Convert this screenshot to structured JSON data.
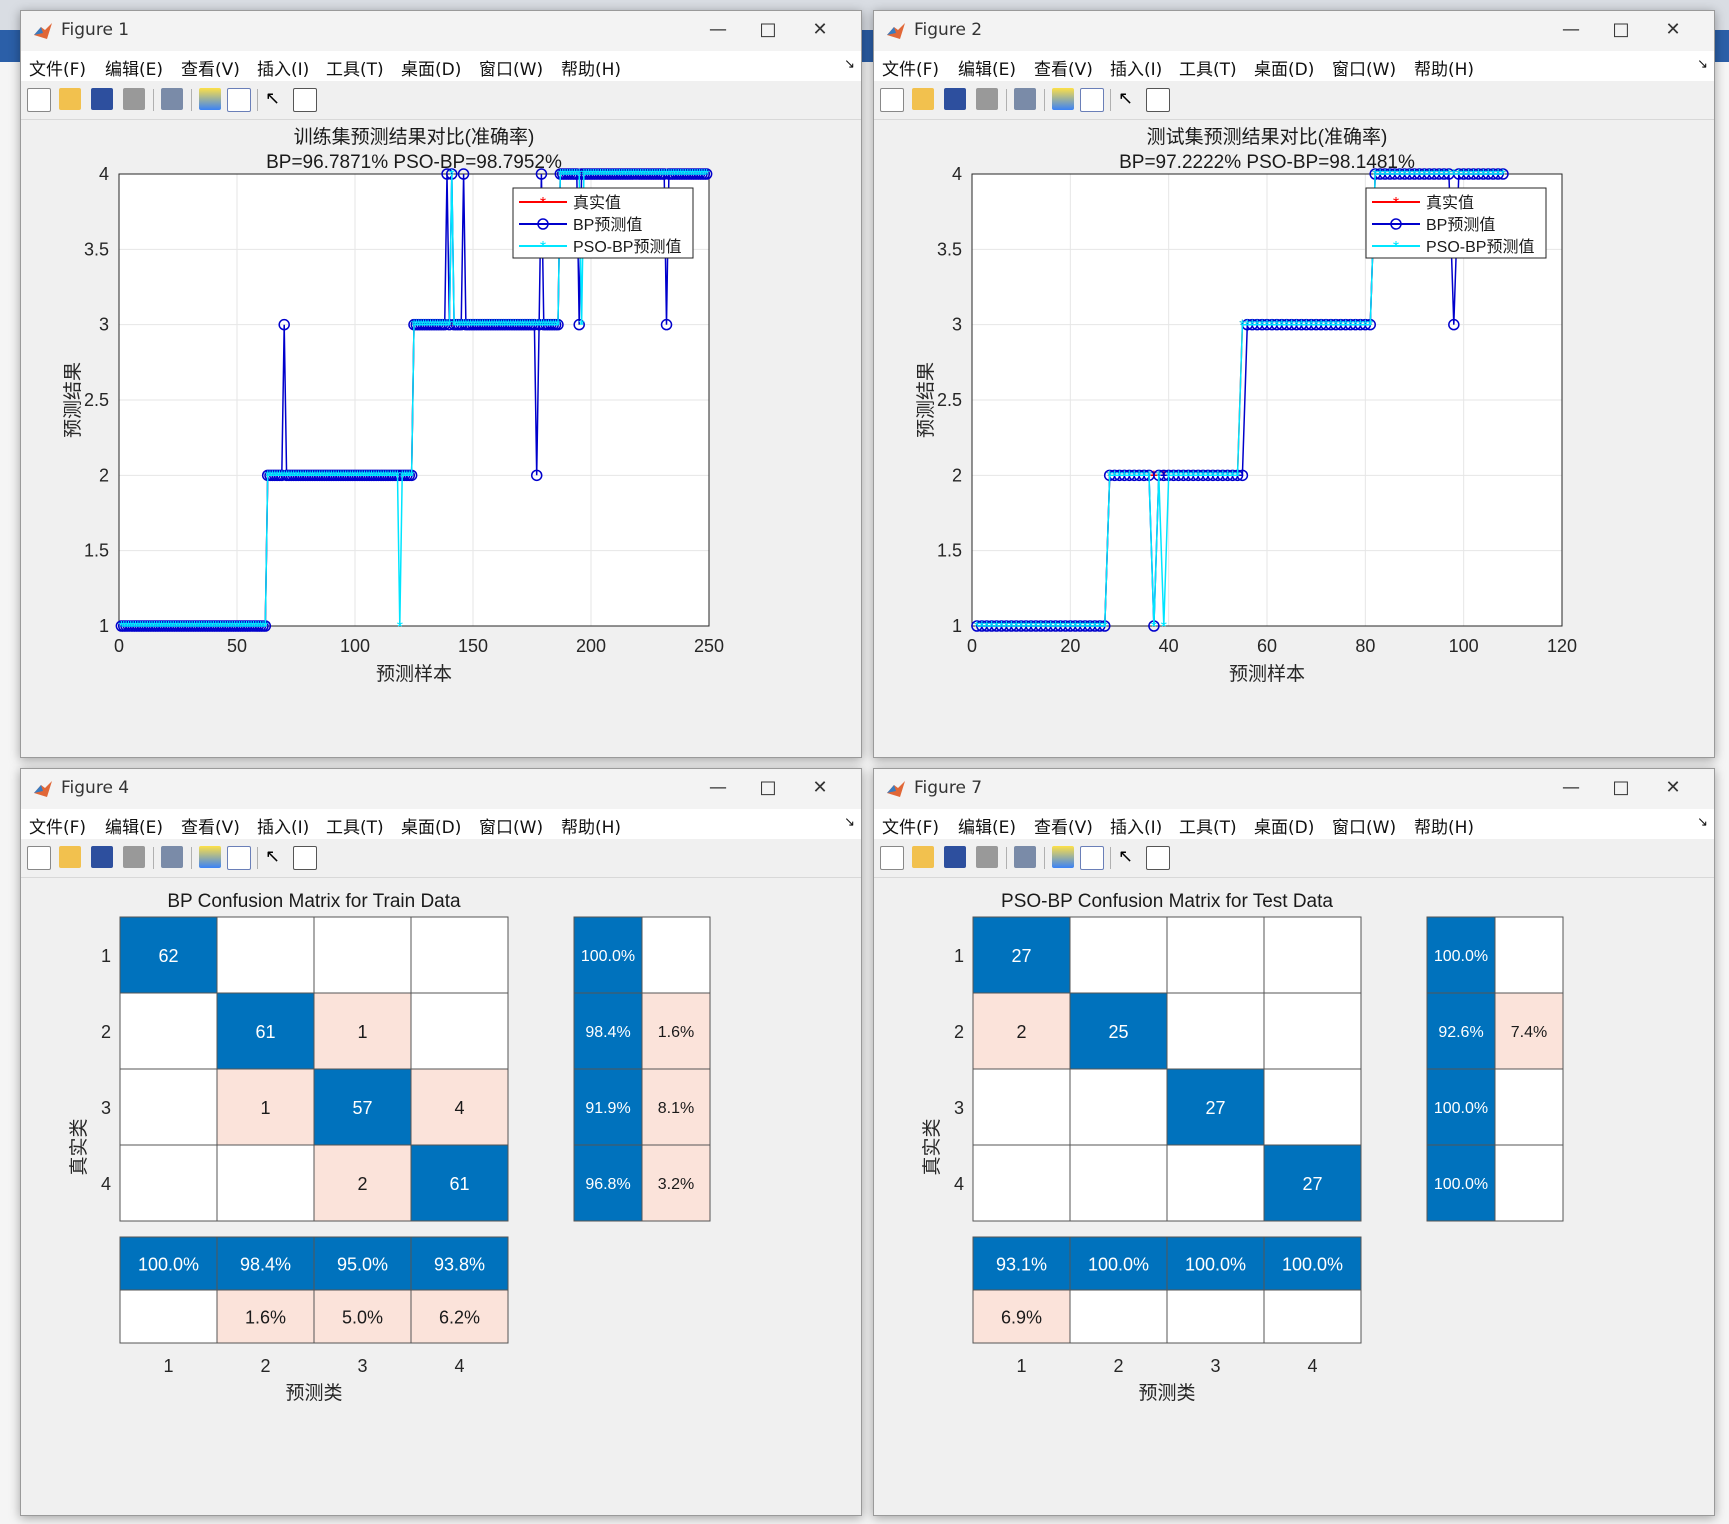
{
  "menu": [
    "文件(F)",
    "编辑(E)",
    "查看(V)",
    "插入(I)",
    "工具(T)",
    "桌面(D)",
    "窗口(W)",
    "帮助(H)"
  ],
  "figures": {
    "fig1": {
      "title": "Figure 1"
    },
    "fig2": {
      "title": "Figure 2"
    },
    "fig4": {
      "title": "Figure 4"
    },
    "fig7": {
      "title": "Figure 7"
    }
  },
  "legend_labels": [
    "真实值",
    "BP预测值",
    "PSO-BP预测值"
  ],
  "colors": {
    "true_series": "#ff0000",
    "bp_series": "#0000cc",
    "psobp_series": "#00e5ff",
    "cm_dark": "#0072bd",
    "cm_light": "#fbe3da"
  },
  "chart_data": [
    {
      "type": "line",
      "title": "训练集预测结果对比(准确率)",
      "subtitle": "BP=96.7871%  PSO-BP=98.7952%",
      "xlabel": "预测样本",
      "ylabel": "预测结果",
      "xlim": [
        0,
        250
      ],
      "ylim": [
        1,
        4
      ],
      "xticks": [
        0,
        50,
        100,
        150,
        200,
        250
      ],
      "yticks": [
        1,
        1.5,
        2,
        2.5,
        3,
        3.5,
        4
      ],
      "grid": true,
      "legend_position": "top-right",
      "series": [
        {
          "name": "真实值",
          "segments": [
            [
              1,
              62,
              1
            ],
            [
              63,
              124,
              2
            ],
            [
              125,
              186,
              3
            ],
            [
              187,
              249,
              4
            ]
          ]
        },
        {
          "name": "BP预测值",
          "segments": [
            [
              1,
              62,
              1
            ],
            [
              63,
              124,
              2
            ],
            [
              125,
              186,
              3
            ],
            [
              187,
              249,
              4
            ]
          ],
          "outliers": [
            [
              70,
              3
            ],
            [
              139,
              4
            ],
            [
              141,
              4
            ],
            [
              146,
              4
            ],
            [
              177,
              2
            ],
            [
              179,
              4
            ],
            [
              195,
              3
            ],
            [
              232,
              3
            ]
          ]
        },
        {
          "name": "PSO-BP预测值",
          "segments": [
            [
              1,
              62,
              1
            ],
            [
              63,
              124,
              2
            ],
            [
              125,
              186,
              3
            ],
            [
              187,
              249,
              4
            ]
          ],
          "outliers": [
            [
              119,
              1
            ],
            [
              141,
              4
            ],
            [
              196,
              3
            ]
          ]
        }
      ]
    },
    {
      "type": "line",
      "title": "测试集预测结果对比(准确率)",
      "subtitle": "BP=97.2222%  PSO-BP=98.1481%",
      "xlabel": "预测样本",
      "ylabel": "预测结果",
      "xlim": [
        0,
        120
      ],
      "ylim": [
        1,
        4
      ],
      "xticks": [
        0,
        20,
        40,
        60,
        80,
        100,
        120
      ],
      "yticks": [
        1,
        1.5,
        2,
        2.5,
        3,
        3.5,
        4
      ],
      "grid": true,
      "legend_position": "top-right",
      "series": [
        {
          "name": "真实值",
          "segments": [
            [
              1,
              27,
              1
            ],
            [
              28,
              54,
              2
            ],
            [
              55,
              81,
              3
            ],
            [
              82,
              108,
              4
            ]
          ]
        },
        {
          "name": "BP预测值",
          "segments": [
            [
              1,
              27,
              1
            ],
            [
              28,
              55,
              2
            ],
            [
              56,
              81,
              3
            ],
            [
              82,
              108,
              4
            ]
          ],
          "outliers": [
            [
              37,
              1
            ],
            [
              98,
              3
            ]
          ]
        },
        {
          "name": "PSO-BP预测值",
          "segments": [
            [
              1,
              27,
              1
            ],
            [
              28,
              54,
              2
            ],
            [
              55,
              81,
              3
            ],
            [
              82,
              108,
              4
            ]
          ],
          "outliers": [
            [
              37,
              1
            ],
            [
              39,
              1
            ]
          ]
        }
      ]
    },
    {
      "type": "heatmap",
      "title": "BP Confusion Matrix for Train Data",
      "xlabel": "预测类",
      "ylabel": "真实类",
      "classes": [
        "1",
        "2",
        "3",
        "4"
      ],
      "matrix": [
        [
          62,
          0,
          0,
          0
        ],
        [
          0,
          61,
          1,
          0
        ],
        [
          0,
          1,
          57,
          4
        ],
        [
          0,
          0,
          2,
          61
        ]
      ],
      "row_summary": [
        [
          "100.0%",
          ""
        ],
        [
          "98.4%",
          "1.6%"
        ],
        [
          "91.9%",
          "8.1%"
        ],
        [
          "96.8%",
          "3.2%"
        ]
      ],
      "col_summary": [
        [
          "100.0%",
          ""
        ],
        [
          "98.4%",
          "1.6%"
        ],
        [
          "95.0%",
          "5.0%"
        ],
        [
          "93.8%",
          "6.2%"
        ]
      ]
    },
    {
      "type": "heatmap",
      "title": "PSO-BP Confusion Matrix for Test Data",
      "xlabel": "预测类",
      "ylabel": "真实类",
      "classes": [
        "1",
        "2",
        "3",
        "4"
      ],
      "matrix": [
        [
          27,
          0,
          0,
          0
        ],
        [
          2,
          25,
          0,
          0
        ],
        [
          0,
          0,
          27,
          0
        ],
        [
          0,
          0,
          0,
          27
        ]
      ],
      "row_summary": [
        [
          "100.0%",
          ""
        ],
        [
          "92.6%",
          "7.4%"
        ],
        [
          "100.0%",
          ""
        ],
        [
          "100.0%",
          ""
        ]
      ],
      "col_summary": [
        [
          "93.1%",
          "6.9%"
        ],
        [
          "100.0%",
          ""
        ],
        [
          "100.0%",
          ""
        ],
        [
          "100.0%",
          ""
        ]
      ]
    }
  ]
}
